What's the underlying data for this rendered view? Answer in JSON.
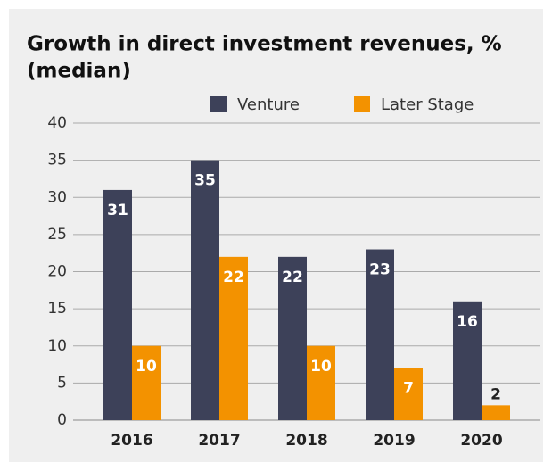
{
  "chart_data": {
    "type": "bar",
    "title": [
      "Growth in direct investment revenues, %",
      "(median)"
    ],
    "categories": [
      "2016",
      "2017",
      "2018",
      "2019",
      "2020"
    ],
    "series": [
      {
        "name": "Venture",
        "color": "#3d4159",
        "values": [
          31,
          35,
          22,
          23,
          16
        ]
      },
      {
        "name": "Later Stage",
        "color": "#f39200",
        "values": [
          10,
          22,
          10,
          7,
          2
        ]
      }
    ],
    "ylim": [
      0,
      40
    ],
    "yticks": [
      0,
      5,
      10,
      15,
      20,
      25,
      30,
      35,
      40
    ],
    "grid": true,
    "legend": "top"
  }
}
